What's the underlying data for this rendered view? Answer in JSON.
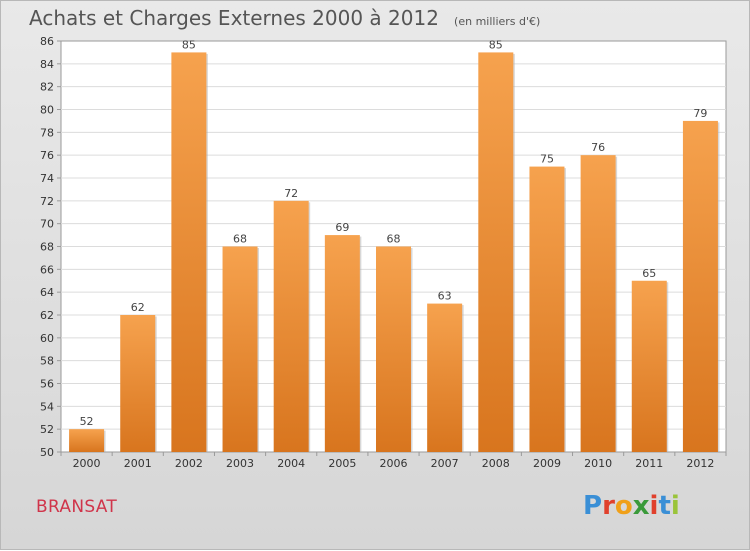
{
  "header": {
    "title": "Achats et Charges Externes 2000 à 2012",
    "subtitle": "(en milliers d'€)"
  },
  "footer": {
    "place": "BRANSAT",
    "logo_text": "Proxiti"
  },
  "colors": {
    "bar_light": "#f6a24e",
    "bar_dark": "#d8751e",
    "place": "#d0344a"
  },
  "chart_data": {
    "type": "bar",
    "title": "Achats et Charges Externes 2000 à 2012",
    "subtitle": "(en milliers d'€)",
    "categories": [
      "2000",
      "2001",
      "2002",
      "2003",
      "2004",
      "2005",
      "2006",
      "2007",
      "2008",
      "2009",
      "2010",
      "2011",
      "2012"
    ],
    "values": [
      52,
      62,
      85,
      68,
      72,
      69,
      68,
      63,
      85,
      75,
      76,
      65,
      79
    ],
    "ylim": [
      50,
      86
    ],
    "yticks": [
      50,
      52,
      54,
      56,
      58,
      60,
      62,
      64,
      66,
      68,
      70,
      72,
      74,
      76,
      78,
      80,
      82,
      84,
      86
    ],
    "grid": true,
    "data_labels": true
  }
}
